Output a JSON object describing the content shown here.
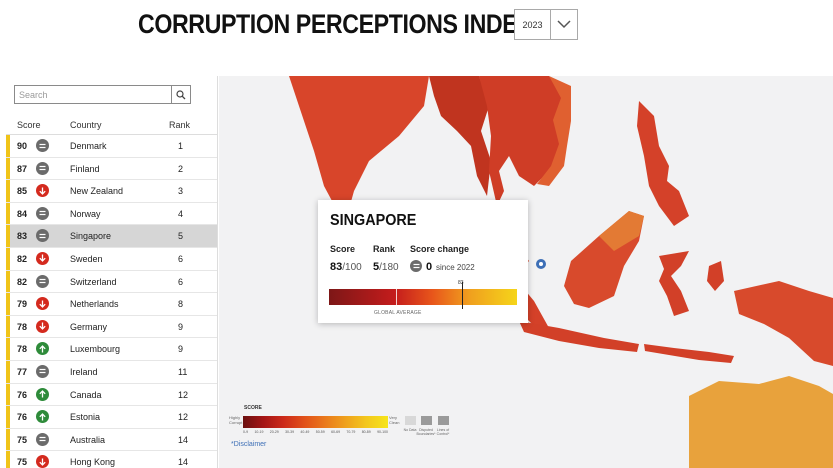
{
  "header": {
    "title": "CORRUPTION PERCEPTIONS INDEX",
    "year": "2023"
  },
  "search": {
    "placeholder": "Search"
  },
  "table": {
    "columns": {
      "score": "Score",
      "country": "Country",
      "rank": "Rank"
    },
    "rows": [
      {
        "score": "90",
        "change": "same",
        "country": "Denmark",
        "rank": "1"
      },
      {
        "score": "87",
        "change": "same",
        "country": "Finland",
        "rank": "2"
      },
      {
        "score": "85",
        "change": "down",
        "country": "New Zealand",
        "rank": "3"
      },
      {
        "score": "84",
        "change": "same",
        "country": "Norway",
        "rank": "4"
      },
      {
        "score": "83",
        "change": "same",
        "country": "Singapore",
        "rank": "5",
        "selected": true
      },
      {
        "score": "82",
        "change": "down",
        "country": "Sweden",
        "rank": "6"
      },
      {
        "score": "82",
        "change": "same",
        "country": "Switzerland",
        "rank": "6"
      },
      {
        "score": "79",
        "change": "down",
        "country": "Netherlands",
        "rank": "8"
      },
      {
        "score": "78",
        "change": "down",
        "country": "Germany",
        "rank": "9"
      },
      {
        "score": "78",
        "change": "up",
        "country": "Luxembourg",
        "rank": "9"
      },
      {
        "score": "77",
        "change": "same",
        "country": "Ireland",
        "rank": "11"
      },
      {
        "score": "76",
        "change": "up",
        "country": "Canada",
        "rank": "12"
      },
      {
        "score": "76",
        "change": "up",
        "country": "Estonia",
        "rank": "12"
      },
      {
        "score": "75",
        "change": "same",
        "country": "Australia",
        "rank": "14"
      },
      {
        "score": "75",
        "change": "down",
        "country": "Hong Kong",
        "rank": "14"
      }
    ]
  },
  "tooltip": {
    "country": "SINGAPORE",
    "score_label": "Score",
    "score": "83",
    "score_suffix": "/100",
    "rank_label": "Rank",
    "rank": "5",
    "rank_suffix": "/180",
    "change_label": "Score change",
    "change": "0",
    "since": "since 2022",
    "marker_value": "83",
    "global_average_label": "GLOBAL AVERAGE"
  },
  "legend": {
    "title": "SCORE",
    "high_label": "Highly Corrupt",
    "low_label": "Very Clean",
    "ticks": [
      "0-9",
      "10-19",
      "20-29",
      "30-39",
      "40-49",
      "50-59",
      "60-69",
      "70-79",
      "80-89",
      "90-100"
    ],
    "no_data": "No Data",
    "disputed": "Disputed Boundaries*",
    "control": "Lines of Control*",
    "disclaimer": "*Disclaimer"
  },
  "colors": {
    "same": "#6b6b6b",
    "down": "#d42a1e",
    "up": "#2e8b3a",
    "bar": "#f0c419",
    "map_red": "#d9482a",
    "map_orange": "#e79a3a"
  }
}
